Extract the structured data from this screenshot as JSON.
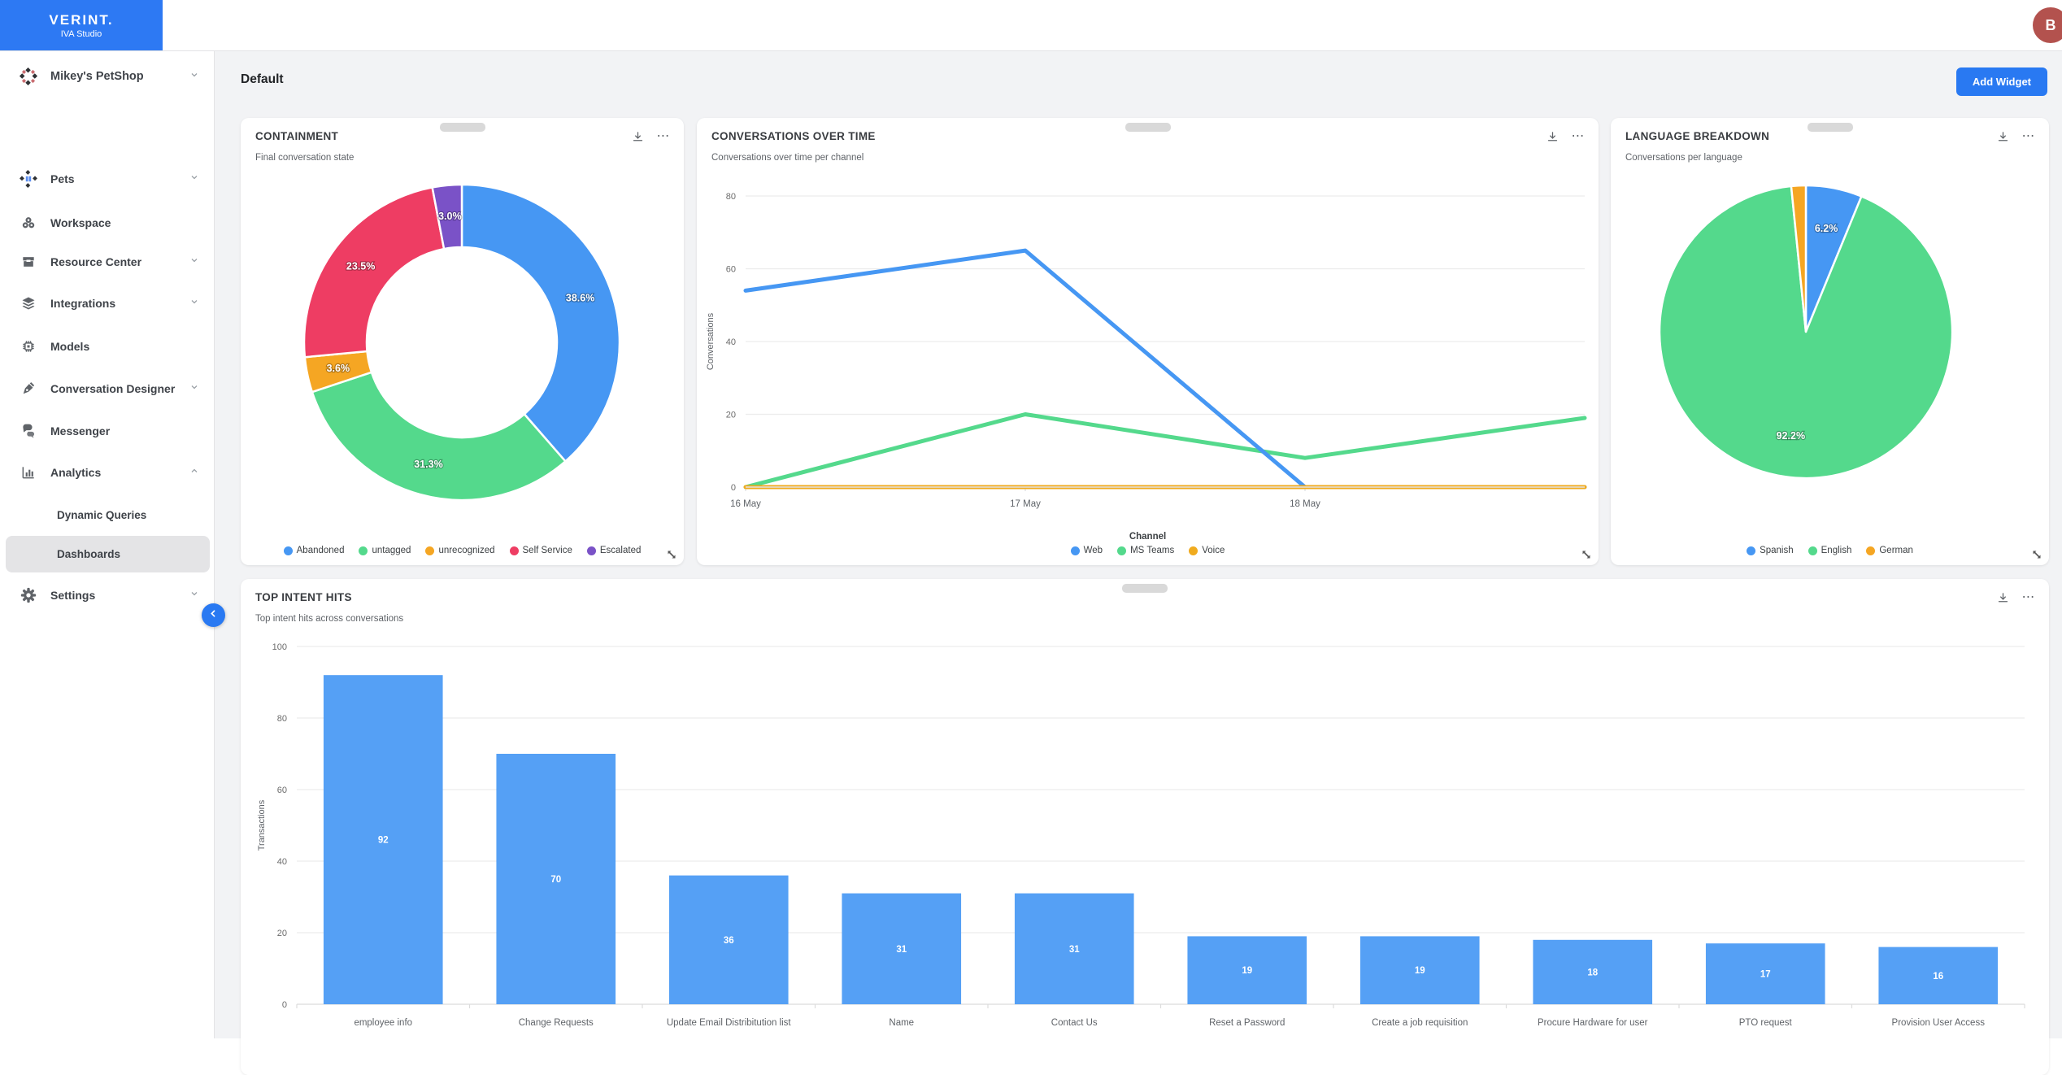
{
  "app": {
    "brand": "VERINT.",
    "brand_sub": "IVA Studio",
    "avatar_initial": "B"
  },
  "header": {
    "title": "Default",
    "add_widget_label": "Add Widget"
  },
  "sidebar": {
    "workspace": {
      "label": "Mikey's PetShop",
      "icon": "petshop-grid-icon"
    },
    "items": [
      {
        "label": "Pets",
        "icon": "pets-grid-icon",
        "chevron": "down"
      },
      {
        "label": "Workspace",
        "icon": "cubes-icon"
      },
      {
        "label": "Resource Center",
        "icon": "storefront-icon",
        "chevron": "down"
      },
      {
        "label": "Integrations",
        "icon": "layers-icon",
        "chevron": "down"
      },
      {
        "label": "Models",
        "icon": "chip-icon"
      },
      {
        "label": "Conversation Designer",
        "icon": "pen-icon",
        "chevron": "down"
      },
      {
        "label": "Messenger",
        "icon": "chat-bubbles-icon"
      },
      {
        "label": "Analytics",
        "icon": "bar-chart-icon",
        "chevron": "up",
        "expanded": true
      },
      {
        "label": "Dynamic Queries",
        "indent": true
      },
      {
        "label": "Dashboards",
        "indent": true,
        "selected": true
      },
      {
        "label": "Settings",
        "icon": "gear-icon",
        "chevron": "down"
      }
    ]
  },
  "widgets": {
    "containment": {
      "title": "CONTAINMENT",
      "subtitle": "Final conversation state"
    },
    "conversations": {
      "title": "CONVERSATIONS OVER TIME",
      "subtitle": "Conversations over time per channel"
    },
    "language": {
      "title": "LANGUAGE BREAKDOWN",
      "subtitle": "Conversations per language"
    },
    "top_intents": {
      "title": "TOP INTENT HITS",
      "subtitle": "Top intent hits across conversations"
    }
  },
  "colors": {
    "accent_blue": "#2979f2",
    "chart_blue": "#4697f3",
    "chart_green": "#54d98c",
    "chart_orange": "#f5a623",
    "chart_red": "#ee3d63",
    "chart_purple": "#7a52c7",
    "avatar_bg": "#b3524e"
  },
  "chart_data": [
    {
      "id": "containment",
      "type": "pie",
      "donut": true,
      "title": "CONTAINMENT",
      "subtitle": "Final conversation state",
      "labels": [
        "Abandoned",
        "untagged",
        "unrecognized",
        "Self Service",
        "Escalated"
      ],
      "values": [
        38.6,
        31.3,
        3.6,
        23.5,
        3.0
      ],
      "colors": [
        "#4697f3",
        "#54d98c",
        "#f5a623",
        "#ee3d63",
        "#7a52c7"
      ],
      "label_format": "percent",
      "legend_position": "bottom"
    },
    {
      "id": "conversations",
      "type": "line",
      "title": "CONVERSATIONS OVER TIME",
      "subtitle": "Conversations over time per channel",
      "x": [
        "16 May",
        "17 May",
        "18 May",
        ""
      ],
      "series": [
        {
          "name": "Web",
          "color": "#4697f3",
          "values": [
            54,
            65,
            0,
            0
          ]
        },
        {
          "name": "MS Teams",
          "color": "#54d98c",
          "values": [
            0,
            20,
            8,
            19
          ]
        },
        {
          "name": "Voice",
          "color": "#f0ab1f",
          "values": [
            0,
            0,
            0,
            0
          ]
        }
      ],
      "ylim": [
        0,
        80
      ],
      "yticks": [
        0,
        20,
        40,
        60,
        80
      ],
      "ylabel": "Conversations",
      "legend_title": "Channel",
      "legend_position": "bottom",
      "grid": true
    },
    {
      "id": "language",
      "type": "pie",
      "donut": false,
      "title": "LANGUAGE BREAKDOWN",
      "subtitle": "Conversations per language",
      "labels": [
        "Spanish",
        "English",
        "German"
      ],
      "values": [
        6.2,
        92.2,
        1.6
      ],
      "colors": [
        "#4697f3",
        "#54d98c",
        "#f5a623"
      ],
      "label_format": "percent",
      "legend_position": "bottom"
    },
    {
      "id": "top_intents",
      "type": "bar",
      "title": "TOP INTENT HITS",
      "subtitle": "Top intent hits across conversations",
      "categories": [
        "employee info",
        "Change Requests",
        "Update Email Distribitution list",
        "Name",
        "Contact Us",
        "Reset a Password",
        "Create a job requisition",
        "Procure Hardware for user",
        "PTO request",
        "Provision User Access"
      ],
      "values": [
        92,
        70,
        36,
        31,
        31,
        19,
        19,
        18,
        17,
        16
      ],
      "ylim": [
        0,
        100
      ],
      "yticks": [
        0,
        20,
        40,
        60,
        80,
        100
      ],
      "ylabel": "Transactions",
      "bar_color": "#55a0f5",
      "grid": true
    }
  ]
}
